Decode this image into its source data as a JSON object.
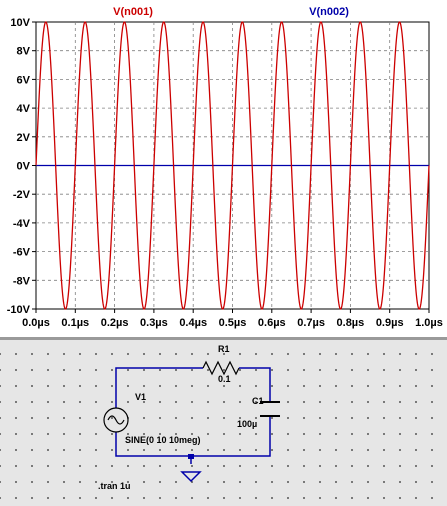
{
  "chart_data": {
    "type": "line",
    "title": "",
    "xlabel": "",
    "ylabel": "",
    "xlim": [
      0,
      1.0
    ],
    "ylim": [
      -10,
      10
    ],
    "x_unit": "µs",
    "y_unit": "V",
    "grid": true,
    "x_ticks": [
      0.0,
      0.1,
      0.2,
      0.3,
      0.4,
      0.5,
      0.6,
      0.7,
      0.8,
      0.9,
      1.0
    ],
    "x_tick_labels": [
      "0.0µs",
      "0.1µs",
      "0.2µs",
      "0.3µs",
      "0.4µs",
      "0.5µs",
      "0.6µs",
      "0.7µs",
      "0.8µs",
      "0.9µs",
      "1.0µs"
    ],
    "y_ticks": [
      10,
      8,
      6,
      4,
      2,
      0,
      -2,
      -4,
      -6,
      -8,
      -10
    ],
    "y_tick_labels": [
      "10V",
      "8V",
      "6V",
      "4V",
      "2V",
      "0V",
      "-2V",
      "-4V",
      "-6V",
      "-8V",
      "-10V"
    ],
    "series": [
      {
        "name": "V(n001)",
        "color": "#cc0000",
        "function": "sine",
        "amplitude": 10,
        "offset": 0,
        "frequency_hz": 10000000
      },
      {
        "name": "V(n002)",
        "color": "#0000aa",
        "function": "constant",
        "value": 0
      }
    ]
  },
  "schematic": {
    "r1_name": "R1",
    "r1_value": "0.1",
    "c1_name": "C1",
    "c1_value": "100µ",
    "v1_name": "V1",
    "v1_value": "SINE(0 10 10meg)",
    "directive": ".tran 1u"
  },
  "colors": {
    "wire": "#0000aa",
    "component": "#000000",
    "grid": "#808080"
  }
}
